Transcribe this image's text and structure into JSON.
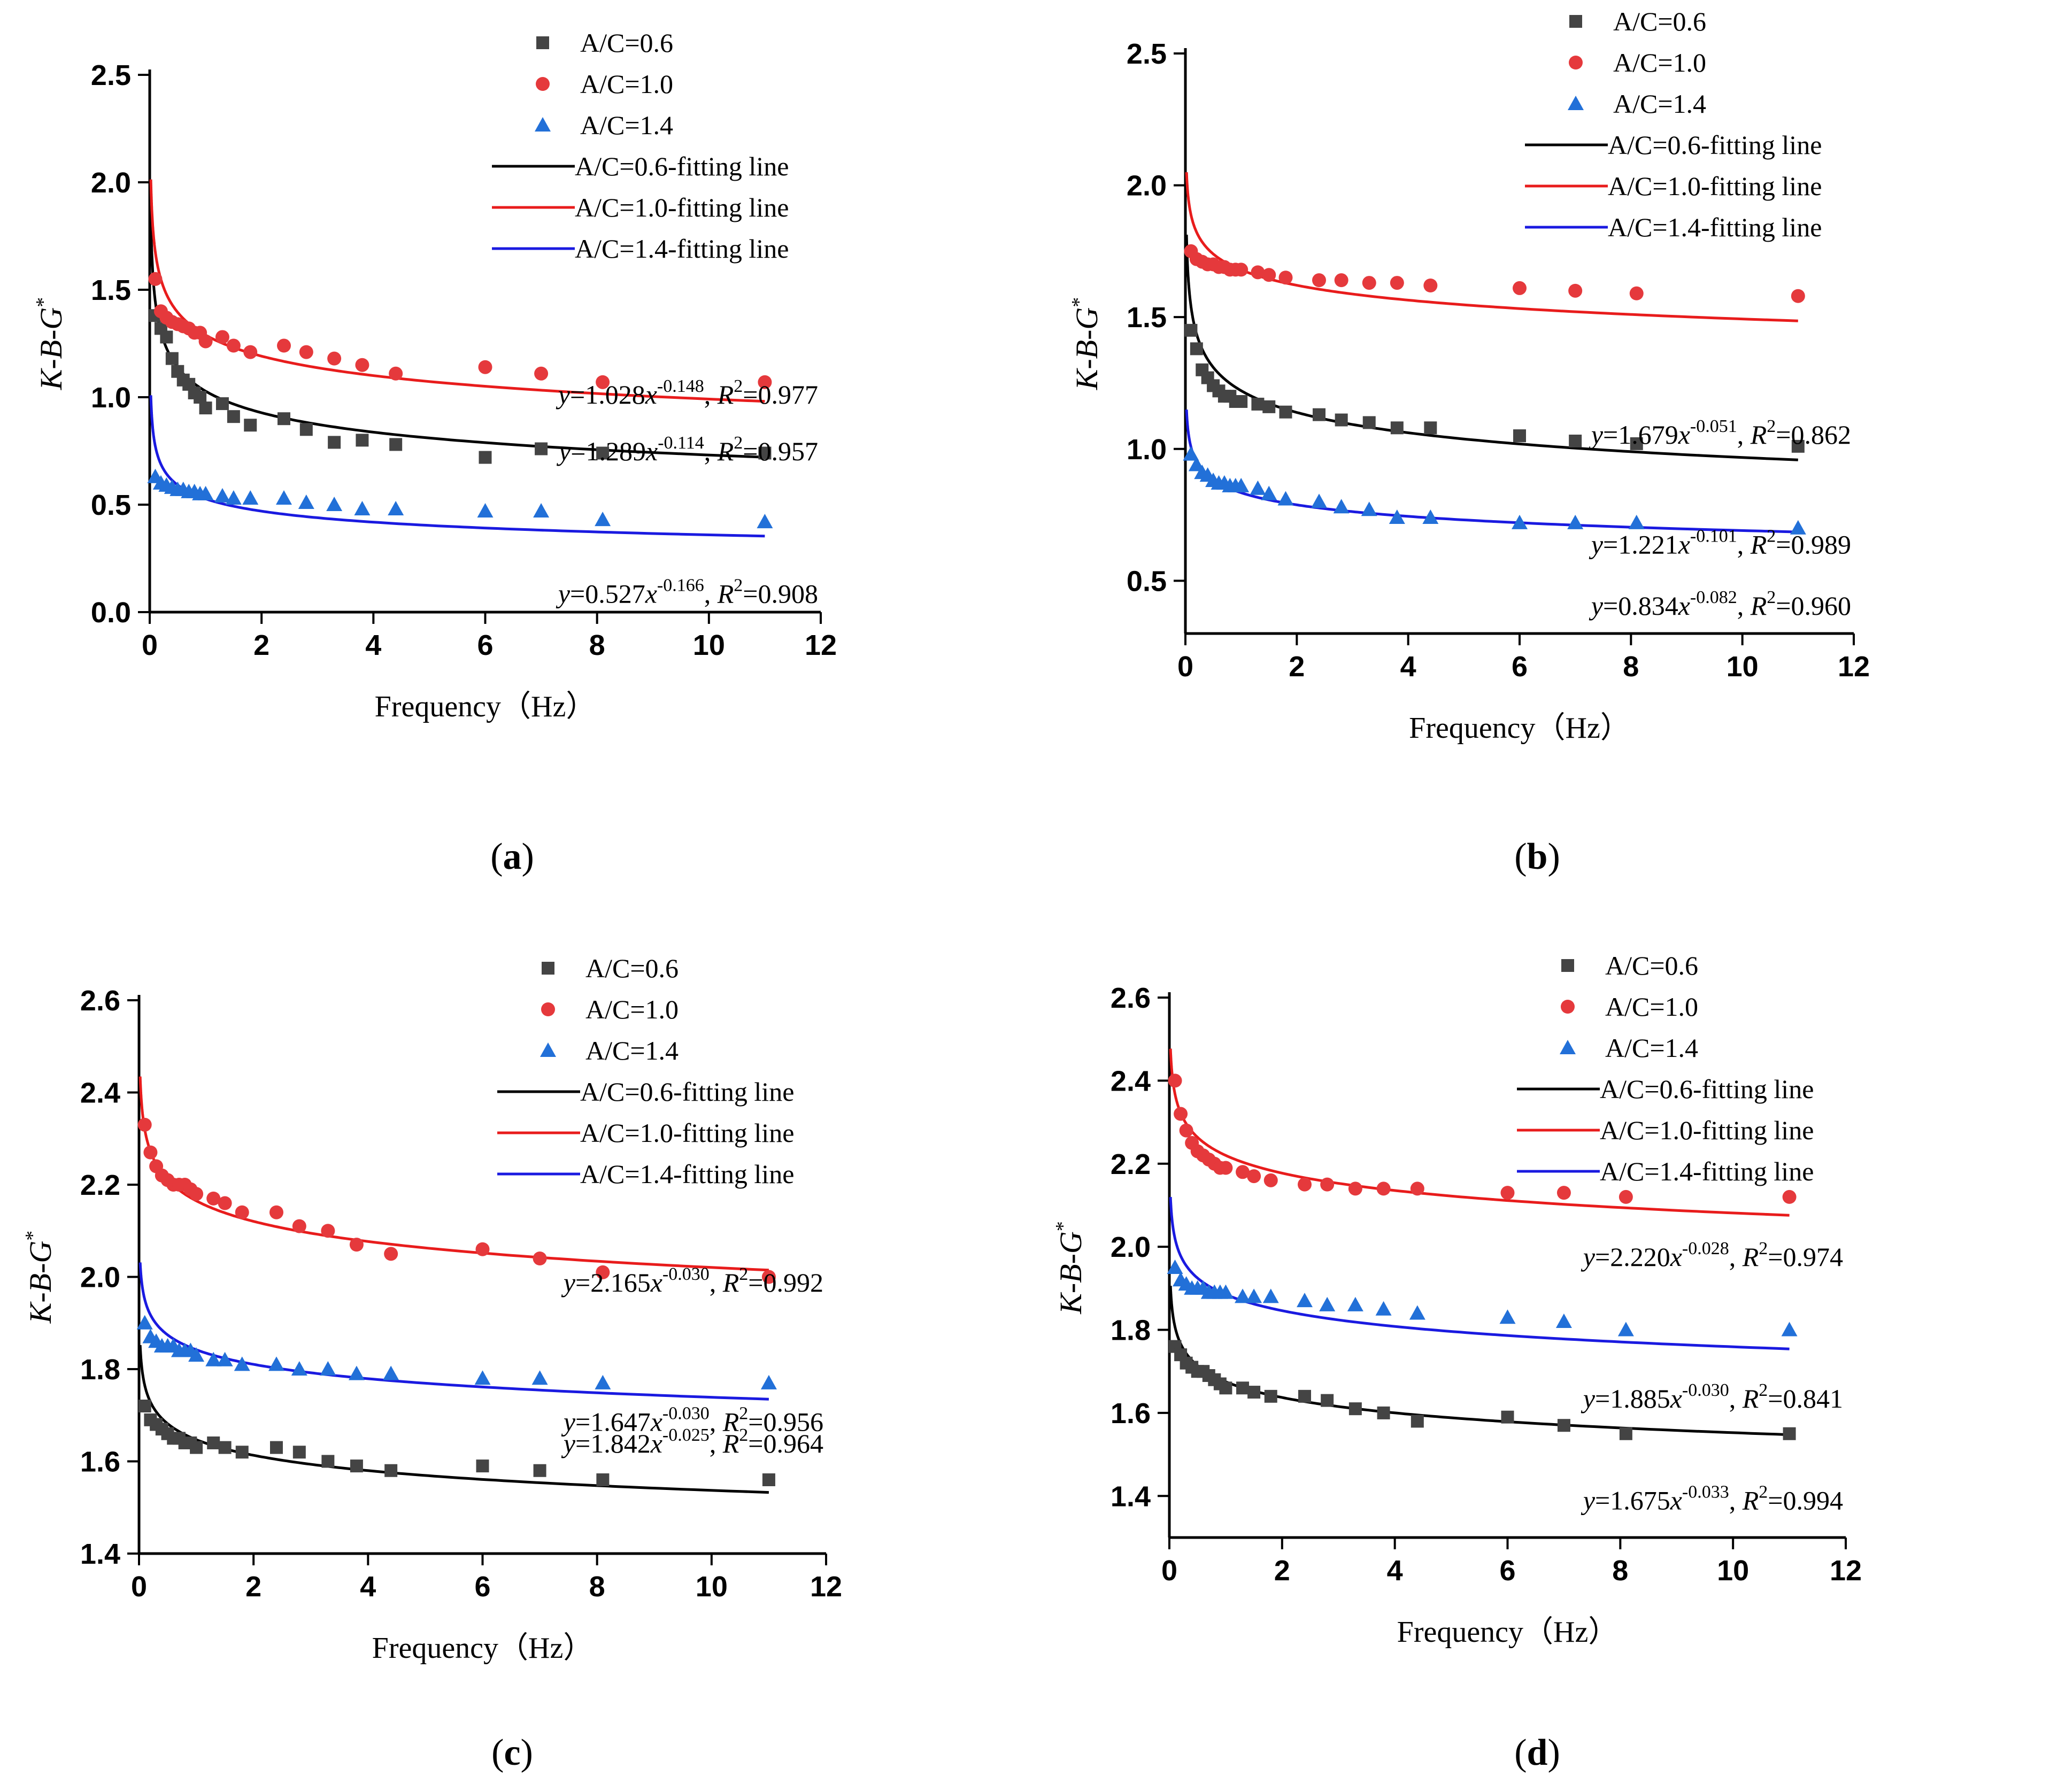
{
  "colors": {
    "series": [
      "#444444",
      "#e5393c",
      "#2270d8"
    ],
    "fits": [
      "#000000",
      "#e81c1c",
      "#1a1ae0"
    ]
  },
  "chart_data": [
    {
      "type": "scatter",
      "caption": "a",
      "xlabel": "Frequency（Hz）",
      "ylabel": "K-B-G*",
      "xlim": [
        0,
        12
      ],
      "ylim": [
        0,
        2.5
      ],
      "xticks": [
        0,
        2,
        4,
        6,
        8,
        10,
        12
      ],
      "yticks": [
        "0.0",
        "0.5",
        "1.0",
        "1.5",
        "2.0",
        "2.5"
      ],
      "x": [
        0.1,
        0.2,
        0.3,
        0.4,
        0.5,
        0.6,
        0.7,
        0.8,
        0.9,
        1.0,
        1.3,
        1.5,
        1.8,
        2.4,
        2.8,
        3.3,
        3.8,
        4.4,
        6.0,
        7.0,
        8.1,
        11.0
      ],
      "series": [
        {
          "name": "A/C=0.6",
          "marker": "square",
          "values": [
            1.38,
            1.32,
            1.28,
            1.18,
            1.12,
            1.08,
            1.06,
            1.02,
            1.0,
            0.95,
            0.97,
            0.91,
            0.87,
            0.9,
            0.85,
            0.79,
            0.8,
            0.78,
            0.72,
            0.76,
            0.74,
            0.74
          ],
          "fit": {
            "label": "A/C=0.6-fitting line",
            "a": 1.028,
            "b": -0.148,
            "eq_coef": "1.028",
            "eq_exp": "-0.148",
            "r2": "0.977"
          }
        },
        {
          "name": "A/C=1.0",
          "marker": "circle",
          "values": [
            1.55,
            1.4,
            1.37,
            1.35,
            1.34,
            1.33,
            1.32,
            1.3,
            1.3,
            1.26,
            1.28,
            1.24,
            1.21,
            1.24,
            1.21,
            1.18,
            1.15,
            1.11,
            1.14,
            1.11,
            1.07,
            1.07
          ],
          "fit": {
            "label": "A/C=1.0-fitting line",
            "a": 1.289,
            "b": -0.114,
            "eq_coef": "1.289",
            "eq_exp": "-0.114",
            "r2": "0.957"
          }
        },
        {
          "name": "A/C=1.4",
          "marker": "triangle",
          "values": [
            0.63,
            0.6,
            0.59,
            0.58,
            0.57,
            0.57,
            0.56,
            0.56,
            0.55,
            0.55,
            0.54,
            0.53,
            0.53,
            0.53,
            0.51,
            0.5,
            0.48,
            0.48,
            0.47,
            0.47,
            0.43,
            0.42
          ],
          "fit": {
            "label": "A/C=1.4-fitting line",
            "a": 0.527,
            "b": -0.166,
            "eq_coef": "0.527",
            "eq_exp": "-0.166",
            "r2": "0.908"
          }
        }
      ]
    },
    {
      "type": "scatter",
      "caption": "b",
      "xlabel": "Frequency（Hz）",
      "ylabel": "K-B-G*",
      "xlim": [
        0,
        12
      ],
      "ylim": [
        0.3,
        2.5
      ],
      "xticks": [
        0,
        2,
        4,
        6,
        8,
        10,
        12
      ],
      "yticks": [
        "0.5",
        "1.0",
        "1.5",
        "2.0",
        "2.5"
      ],
      "x": [
        0.1,
        0.2,
        0.3,
        0.4,
        0.5,
        0.6,
        0.7,
        0.8,
        0.9,
        1.0,
        1.3,
        1.5,
        1.8,
        2.4,
        2.8,
        3.3,
        3.8,
        4.4,
        6.0,
        7.0,
        8.1,
        11.0
      ],
      "series": [
        {
          "name": "A/C=0.6",
          "marker": "square",
          "values": [
            1.45,
            1.38,
            1.3,
            1.27,
            1.24,
            1.22,
            1.2,
            1.2,
            1.18,
            1.18,
            1.17,
            1.16,
            1.14,
            1.13,
            1.11,
            1.1,
            1.08,
            1.08,
            1.05,
            1.03,
            1.02,
            1.01
          ],
          "fit": {
            "label": "A/C=0.6-fitting line",
            "a": 1.221,
            "b": -0.101,
            "eq_coef": "1.221",
            "eq_exp": "-0.101",
            "r2": "0.989"
          }
        },
        {
          "name": "A/C=1.0",
          "marker": "circle",
          "values": [
            1.75,
            1.72,
            1.71,
            1.7,
            1.7,
            1.69,
            1.69,
            1.68,
            1.68,
            1.68,
            1.67,
            1.66,
            1.65,
            1.64,
            1.64,
            1.63,
            1.63,
            1.62,
            1.61,
            1.6,
            1.59,
            1.58
          ],
          "fit": {
            "label": "A/C=1.0-fitting line",
            "a": 1.679,
            "b": -0.051,
            "eq_coef": "1.679",
            "eq_exp": "-0.051",
            "r2": "0.862"
          }
        },
        {
          "name": "A/C=1.4",
          "marker": "triangle",
          "values": [
            0.98,
            0.94,
            0.91,
            0.9,
            0.88,
            0.87,
            0.87,
            0.86,
            0.86,
            0.86,
            0.85,
            0.83,
            0.81,
            0.8,
            0.78,
            0.77,
            0.74,
            0.74,
            0.72,
            0.72,
            0.72,
            0.7
          ],
          "fit": {
            "label": "A/C=1.4-fitting line",
            "a": 0.834,
            "b": -0.082,
            "eq_coef": "0.834",
            "eq_exp": "-0.082",
            "r2": "0.960"
          }
        }
      ]
    },
    {
      "type": "scatter",
      "caption": "c",
      "xlabel": "Frequency（Hz）",
      "ylabel": "K-B-G*",
      "xlim": [
        0,
        12
      ],
      "ylim": [
        1.4,
        2.6
      ],
      "xticks": [
        0,
        2,
        4,
        6,
        8,
        10,
        12
      ],
      "yticks": [
        "1.4",
        "1.6",
        "1.8",
        "2.0",
        "2.2",
        "2.4",
        "2.6"
      ],
      "x": [
        0.1,
        0.2,
        0.3,
        0.4,
        0.5,
        0.6,
        0.7,
        0.8,
        0.9,
        1.0,
        1.3,
        1.5,
        1.8,
        2.4,
        2.8,
        3.3,
        3.8,
        4.4,
        6.0,
        7.0,
        8.1,
        11.0
      ],
      "series": [
        {
          "name": "A/C=0.6",
          "marker": "square",
          "values": [
            1.72,
            1.69,
            1.68,
            1.67,
            1.66,
            1.65,
            1.65,
            1.64,
            1.64,
            1.63,
            1.64,
            1.63,
            1.62,
            1.63,
            1.62,
            1.6,
            1.59,
            1.58,
            1.59,
            1.58,
            1.56,
            1.56
          ],
          "fit": {
            "label": "A/C=0.6-fitting line",
            "a": 1.647,
            "b": -0.03,
            "eq_coef": "1.647",
            "eq_exp": "-0.030",
            "r2": "0.956"
          }
        },
        {
          "name": "A/C=1.0",
          "marker": "circle",
          "values": [
            2.33,
            2.27,
            2.24,
            2.22,
            2.21,
            2.2,
            2.2,
            2.2,
            2.19,
            2.18,
            2.17,
            2.16,
            2.14,
            2.14,
            2.11,
            2.1,
            2.07,
            2.05,
            2.06,
            2.04,
            2.01,
            2.0
          ],
          "fit": {
            "label": "A/C=1.0-fitting line",
            "a": 2.165,
            "b": -0.03,
            "eq_coef": "2.165",
            "eq_exp": "-0.030",
            "r2": "0.992"
          }
        },
        {
          "name": "A/C=1.4",
          "marker": "triangle",
          "values": [
            1.9,
            1.87,
            1.86,
            1.85,
            1.85,
            1.85,
            1.84,
            1.84,
            1.84,
            1.83,
            1.82,
            1.82,
            1.81,
            1.81,
            1.8,
            1.8,
            1.79,
            1.79,
            1.78,
            1.78,
            1.77,
            1.77
          ],
          "fit": {
            "label": "A/C=1.4-fitting line",
            "a": 1.842,
            "b": -0.025,
            "eq_coef": "1.842",
            "eq_exp": "-0.025",
            "r2": "0.964"
          }
        }
      ]
    },
    {
      "type": "scatter",
      "caption": "d",
      "xlabel": "Frequency（Hz）",
      "ylabel": "K-B-G*",
      "xlim": [
        0,
        12
      ],
      "ylim": [
        1.3,
        2.6
      ],
      "xticks": [
        0,
        2,
        4,
        6,
        8,
        10,
        12
      ],
      "yticks": [
        "1.4",
        "1.6",
        "1.8",
        "2.0",
        "2.2",
        "2.4",
        "2.6"
      ],
      "x": [
        0.1,
        0.2,
        0.3,
        0.4,
        0.5,
        0.6,
        0.7,
        0.8,
        0.9,
        1.0,
        1.3,
        1.5,
        1.8,
        2.4,
        2.8,
        3.3,
        3.8,
        4.4,
        6.0,
        7.0,
        8.1,
        11.0
      ],
      "series": [
        {
          "name": "A/C=0.6",
          "marker": "square",
          "values": [
            1.76,
            1.74,
            1.72,
            1.71,
            1.7,
            1.7,
            1.69,
            1.68,
            1.67,
            1.66,
            1.66,
            1.65,
            1.64,
            1.64,
            1.63,
            1.61,
            1.6,
            1.58,
            1.59,
            1.57,
            1.55,
            1.55
          ],
          "fit": {
            "label": "A/C=0.6-fitting line",
            "a": 1.675,
            "b": -0.033,
            "eq_coef": "1.675",
            "eq_exp": "-0.033",
            "r2": "0.994"
          }
        },
        {
          "name": "A/C=1.0",
          "marker": "circle",
          "values": [
            2.4,
            2.32,
            2.28,
            2.25,
            2.23,
            2.22,
            2.21,
            2.2,
            2.19,
            2.19,
            2.18,
            2.17,
            2.16,
            2.15,
            2.15,
            2.14,
            2.14,
            2.14,
            2.13,
            2.13,
            2.12,
            2.12
          ],
          "fit": {
            "label": "A/C=1.0-fitting line",
            "a": 2.22,
            "b": -0.028,
            "eq_coef": "2.220",
            "eq_exp": "-0.028",
            "r2": "0.974"
          }
        },
        {
          "name": "A/C=1.4",
          "marker": "triangle",
          "values": [
            1.95,
            1.92,
            1.91,
            1.9,
            1.9,
            1.9,
            1.89,
            1.89,
            1.89,
            1.89,
            1.88,
            1.88,
            1.88,
            1.87,
            1.86,
            1.86,
            1.85,
            1.84,
            1.83,
            1.82,
            1.8,
            1.8
          ],
          "fit": {
            "label": "A/C=1.4-fitting line",
            "a": 1.885,
            "b": -0.03,
            "eq_coef": "1.885",
            "eq_exp": "-0.030",
            "r2": "0.841"
          }
        }
      ]
    }
  ]
}
